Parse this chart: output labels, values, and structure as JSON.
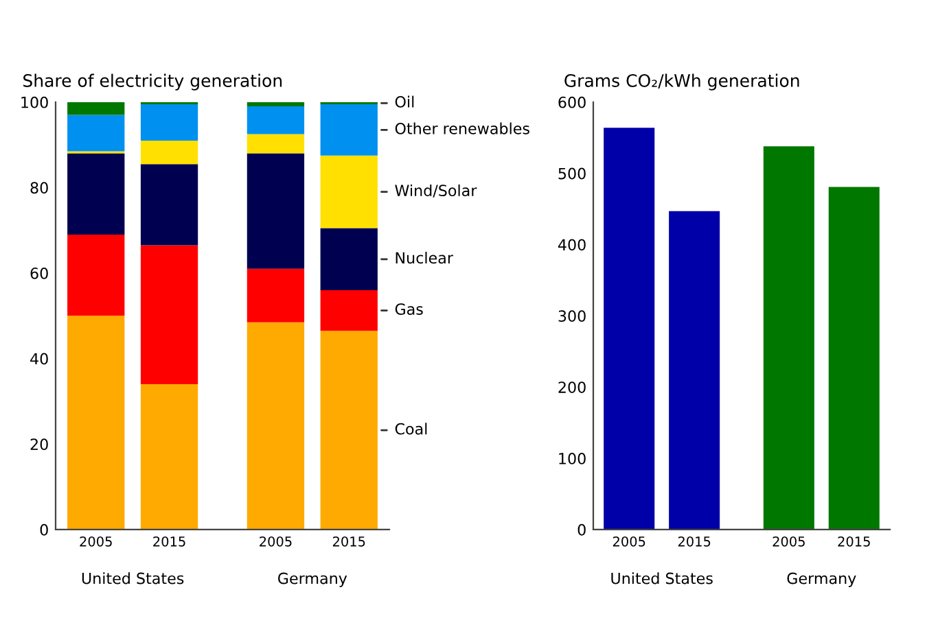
{
  "chart_data": [
    {
      "type": "bar",
      "title": "Share of electricity generation",
      "categories": [
        "2005",
        "2015",
        "2005",
        "2015"
      ],
      "stacked": true,
      "ylim": [
        0,
        100
      ],
      "yticks": [
        0,
        20,
        40,
        60,
        80,
        100
      ],
      "grid": false,
      "legend": false,
      "annotations": [
        "United States",
        "Germany"
      ],
      "series": [
        {
          "name": "Coal",
          "color": "#ffaa00",
          "values": [
            50,
            34,
            48.5,
            46.5
          ]
        },
        {
          "name": "Gas",
          "color": "#ff0000",
          "values": [
            19,
            32.5,
            12.5,
            9.5
          ]
        },
        {
          "name": "Nuclear",
          "color": "#000050",
          "values": [
            19,
            19,
            27,
            14.5
          ]
        },
        {
          "name": "Wind/Solar",
          "color": "#ffe000",
          "values": [
            0.5,
            5.5,
            4.5,
            17
          ]
        },
        {
          "name": "Other renewables",
          "color": "#0090f0",
          "values": [
            8.5,
            8.5,
            6.5,
            12
          ]
        },
        {
          "name": "Oil",
          "color": "#007800",
          "values": [
            3,
            0.5,
            1,
            0.5
          ]
        }
      ]
    },
    {
      "type": "bar",
      "title": "Grams CO₂/kWh generation",
      "categories": [
        "2005",
        "2015",
        "2005",
        "2015"
      ],
      "ylim": [
        0,
        600
      ],
      "yticks": [
        0,
        100,
        200,
        300,
        400,
        500,
        600
      ],
      "grid": false,
      "legend": false,
      "annotations": [
        "United States",
        "Germany"
      ],
      "values": [
        564,
        447,
        538,
        481
      ],
      "colors": [
        "#0000a8",
        "#0000a8",
        "#007800",
        "#007800"
      ]
    }
  ]
}
